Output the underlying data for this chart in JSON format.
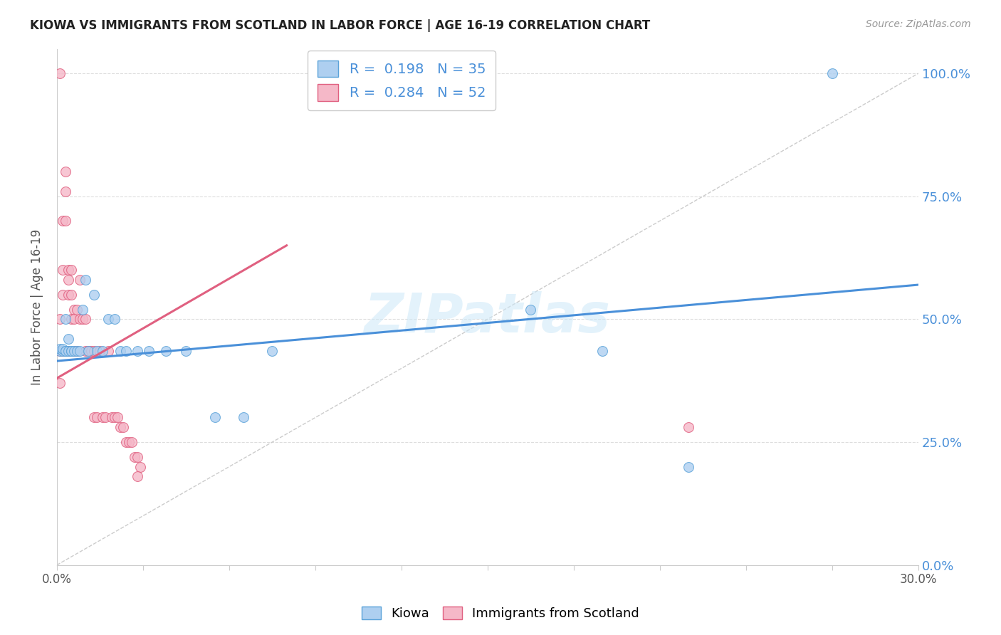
{
  "title": "KIOWA VS IMMIGRANTS FROM SCOTLAND IN LABOR FORCE | AGE 16-19 CORRELATION CHART",
  "source": "Source: ZipAtlas.com",
  "ylabel": "In Labor Force | Age 16-19",
  "xlim": [
    0.0,
    0.3
  ],
  "ylim": [
    0.0,
    1.05
  ],
  "ytick_labels": [
    "0.0%",
    "25.0%",
    "50.0%",
    "75.0%",
    "100.0%"
  ],
  "ytick_vals": [
    0.0,
    0.25,
    0.5,
    0.75,
    1.0
  ],
  "xtick_vals": [
    0.0,
    0.03,
    0.06,
    0.09,
    0.12,
    0.15,
    0.18,
    0.21,
    0.24,
    0.27,
    0.3
  ],
  "kiowa_color": "#aecff0",
  "kiowa_edge_color": "#5ba3d9",
  "scotland_color": "#f5b8c8",
  "scotland_edge_color": "#e06080",
  "kiowa_R": 0.198,
  "kiowa_N": 35,
  "scotland_R": 0.284,
  "scotland_N": 52,
  "trend_color_blue": "#4a90d9",
  "trend_color_pink": "#e06080",
  "diagonal_color": "#cccccc",
  "watermark": "ZIPatlas",
  "legend_color": "#4a90d9",
  "marker_size": 100,
  "kiowa_x": [
    0.001,
    0.001,
    0.002,
    0.002,
    0.003,
    0.003,
    0.003,
    0.004,
    0.004,
    0.005,
    0.005,
    0.006,
    0.007,
    0.008,
    0.009,
    0.01,
    0.011,
    0.013,
    0.014,
    0.016,
    0.018,
    0.02,
    0.022,
    0.024,
    0.028,
    0.032,
    0.038,
    0.045,
    0.055,
    0.065,
    0.075,
    0.165,
    0.19,
    0.22,
    0.27
  ],
  "kiowa_y": [
    0.435,
    0.44,
    0.435,
    0.44,
    0.435,
    0.5,
    0.435,
    0.435,
    0.46,
    0.435,
    0.435,
    0.435,
    0.435,
    0.435,
    0.52,
    0.58,
    0.435,
    0.55,
    0.435,
    0.435,
    0.5,
    0.5,
    0.435,
    0.435,
    0.435,
    0.435,
    0.435,
    0.435,
    0.3,
    0.3,
    0.435,
    0.52,
    0.435,
    0.2,
    1.0
  ],
  "scotland_x": [
    0.001,
    0.001,
    0.001,
    0.001,
    0.002,
    0.002,
    0.002,
    0.002,
    0.003,
    0.003,
    0.003,
    0.003,
    0.004,
    0.004,
    0.004,
    0.004,
    0.005,
    0.005,
    0.005,
    0.006,
    0.006,
    0.006,
    0.007,
    0.007,
    0.008,
    0.008,
    0.009,
    0.01,
    0.01,
    0.011,
    0.011,
    0.012,
    0.013,
    0.013,
    0.014,
    0.015,
    0.016,
    0.017,
    0.018,
    0.019,
    0.02,
    0.021,
    0.022,
    0.023,
    0.024,
    0.025,
    0.026,
    0.027,
    0.028,
    0.029,
    0.028,
    0.22
  ],
  "scotland_y": [
    1.0,
    0.5,
    0.435,
    0.37,
    0.7,
    0.6,
    0.55,
    0.435,
    0.8,
    0.76,
    0.7,
    0.435,
    0.6,
    0.58,
    0.55,
    0.435,
    0.6,
    0.55,
    0.5,
    0.52,
    0.5,
    0.435,
    0.52,
    0.435,
    0.58,
    0.5,
    0.5,
    0.5,
    0.435,
    0.435,
    0.435,
    0.435,
    0.435,
    0.3,
    0.3,
    0.435,
    0.3,
    0.3,
    0.435,
    0.3,
    0.3,
    0.3,
    0.28,
    0.28,
    0.25,
    0.25,
    0.25,
    0.22,
    0.22,
    0.2,
    0.18,
    0.28
  ],
  "kiowa_trend_x0": 0.0,
  "kiowa_trend_y0": 0.415,
  "kiowa_trend_x1": 0.3,
  "kiowa_trend_y1": 0.57,
  "scotland_trend_x0": 0.0,
  "scotland_trend_y0": 0.38,
  "scotland_trend_x1": 0.08,
  "scotland_trend_y1": 0.65
}
